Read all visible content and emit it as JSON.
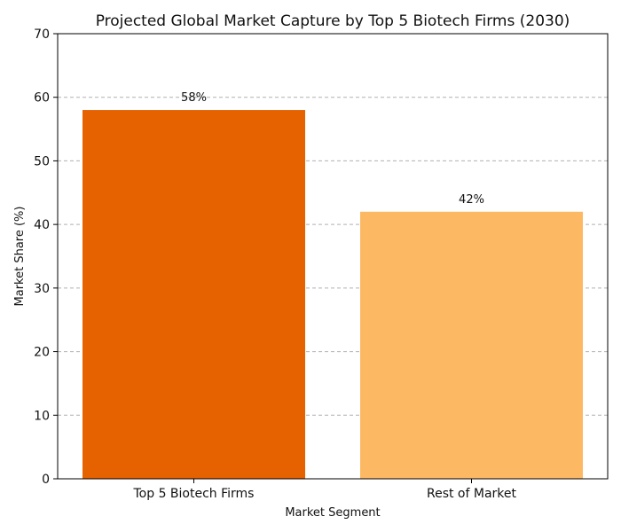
{
  "chart_data": {
    "type": "bar",
    "title": "Projected Global Market Capture by Top 5 Biotech Firms (2030)",
    "xlabel": "Market Segment",
    "ylabel": "Market Share (%)",
    "categories": [
      "Top 5 Biotech Firms",
      "Rest of Market"
    ],
    "values": [
      58,
      42
    ],
    "data_labels": [
      "58%",
      "42%"
    ],
    "colors": [
      "#e66100",
      "#fdb863"
    ],
    "ylim": [
      0,
      70
    ],
    "yticks": [
      0,
      10,
      20,
      30,
      40,
      50,
      60,
      70
    ],
    "ytick_labels": [
      "0",
      "10",
      "20",
      "30",
      "40",
      "50",
      "60",
      "70"
    ],
    "grid": "y-dashed",
    "legend": "none"
  }
}
